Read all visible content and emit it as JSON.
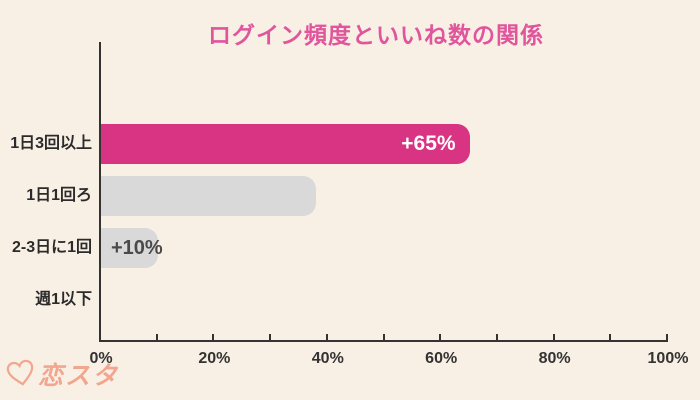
{
  "title": "ログイン頻度といいね数の関係",
  "colors": {
    "background": "#F9F0E5",
    "title": "#E0559C",
    "bar_highlight": "#D93384",
    "bar_default": "#D9D9D9",
    "axis": "#333333",
    "data_label_dark": "#4A4A4A",
    "data_label_light": "#FFFFFF",
    "logo": "#F2A68F"
  },
  "logo": {
    "icon": "heart-icon",
    "text": "恋スタ"
  },
  "chart_data": {
    "type": "bar",
    "orientation": "horizontal",
    "title": "ログイン頻度といいね数の関係",
    "categories": [
      "1日3回以上",
      "1日1回ろ",
      "2-3日に1回",
      "週1以下"
    ],
    "values": [
      65,
      38,
      10,
      0
    ],
    "data_labels": [
      "+65%",
      "",
      "+10%",
      ""
    ],
    "label_styles": [
      "inside-right",
      "none",
      "overlay-left",
      "none"
    ],
    "bar_colors": [
      "#D93384",
      "#D9D9D9",
      "#D9D9D9",
      "#D9D9D9"
    ],
    "highlighted_category": "1日3回以上",
    "xlabel": "",
    "ylabel": "",
    "xlim": [
      0,
      100
    ],
    "x_tick_labels": [
      "0%",
      "20%",
      "40%",
      "60%",
      "80%",
      "100%"
    ],
    "minor_tick_percent": 10,
    "grid": false,
    "legend": false
  }
}
